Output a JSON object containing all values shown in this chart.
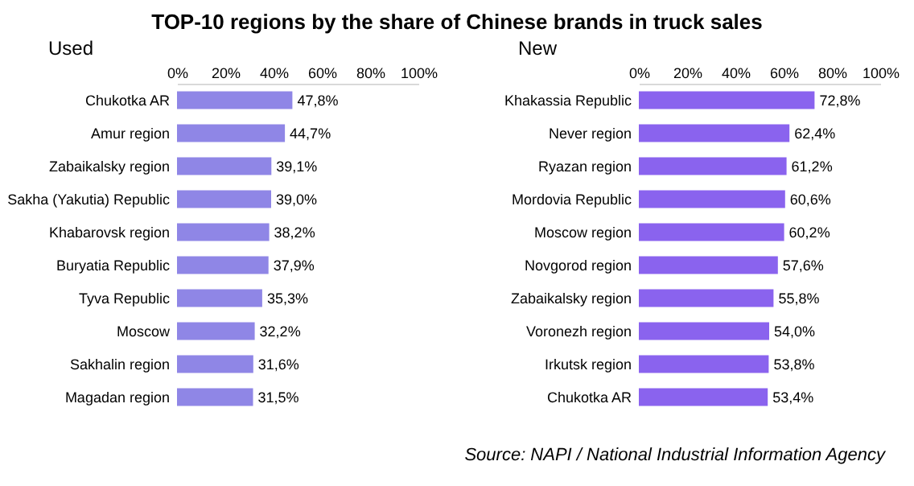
{
  "chart_data": [
    {
      "type": "bar",
      "orientation": "horizontal",
      "title": "TOP-10 regions by the share of Chinese brands in truck sales",
      "subtitle": "Used",
      "categories": [
        "Chukotka AR",
        "Amur region",
        "Zabaikalsky region",
        "Sakha (Yakutia) Republic",
        "Khabarovsk region",
        "Buryatia Republic",
        "Tyva Republic",
        "Moscow",
        "Sakhalin region",
        "Magadan region"
      ],
      "values": [
        47.8,
        44.7,
        39.1,
        39.0,
        38.2,
        37.9,
        35.3,
        32.2,
        31.6,
        31.5
      ],
      "value_labels": [
        "47,8%",
        "44,7%",
        "39,1%",
        "39,0%",
        "38,2%",
        "37,9%",
        "35,3%",
        "32,2%",
        "31,6%",
        "31,5%"
      ],
      "color": "#8f86e6",
      "xlim": [
        0,
        100
      ],
      "xticks": [
        {
          "value": 0,
          "label": "0%"
        },
        {
          "value": 20,
          "label": "20%"
        },
        {
          "value": 40,
          "label": "40%"
        },
        {
          "value": 60,
          "label": "60%"
        },
        {
          "value": 80,
          "label": "80%"
        },
        {
          "value": 100,
          "label": "100%"
        }
      ],
      "grid": false
    },
    {
      "type": "bar",
      "orientation": "horizontal",
      "subtitle": "New",
      "categories": [
        "Khakassia Republic",
        "Never region",
        "Ryazan region",
        "Mordovia Republic",
        "Moscow region",
        "Novgorod region",
        "Zabaikalsky region",
        "Voronezh region",
        "Irkutsk region",
        "Chukotka AR"
      ],
      "values": [
        72.8,
        62.4,
        61.2,
        60.6,
        60.2,
        57.6,
        55.8,
        54.0,
        53.8,
        53.4
      ],
      "value_labels": [
        "72,8%",
        "62,4%",
        "61,2%",
        "60,6%",
        "60,2%",
        "57,6%",
        "55,8%",
        "54,0%",
        "53,8%",
        "53,4%"
      ],
      "color": "#8a63ee",
      "xlim": [
        0,
        100
      ],
      "xticks": [
        {
          "value": 0,
          "label": "0%"
        },
        {
          "value": 20,
          "label": "20%"
        },
        {
          "value": 40,
          "label": "40%"
        },
        {
          "value": 60,
          "label": "60%"
        },
        {
          "value": 80,
          "label": "80%"
        },
        {
          "value": 100,
          "label": "100%"
        }
      ],
      "grid": false,
      "annotations": [
        "Source: NAPI / National Industrial Information Agency"
      ]
    }
  ]
}
